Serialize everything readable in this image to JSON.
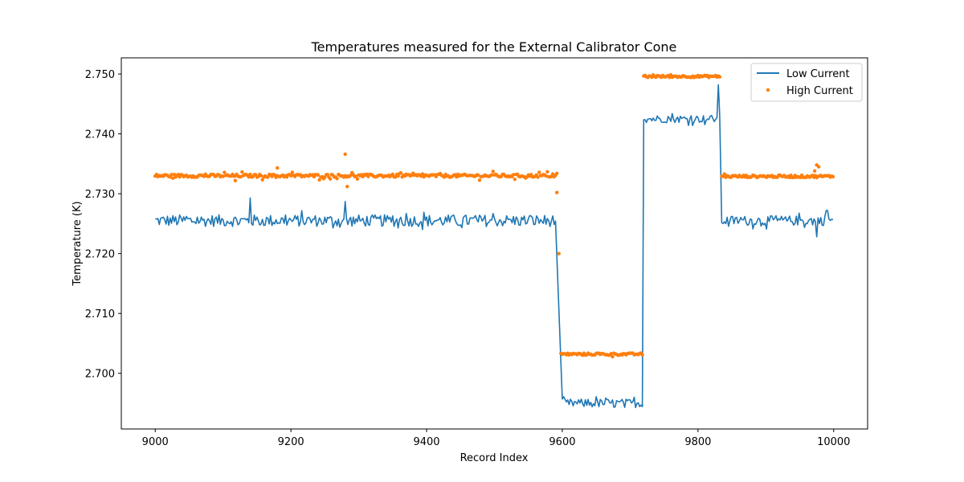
{
  "chart_data": {
    "type": "line",
    "title": "Temperatures measured for the External Calibrator Cone",
    "xlabel": "Record Index",
    "ylabel": "Temperature (K)",
    "xlim": [
      8950,
      10050
    ],
    "ylim": [
      2.6907,
      2.7527
    ],
    "xticks": [
      9000,
      9200,
      9400,
      9600,
      9800,
      10000
    ],
    "yticks": [
      2.7,
      2.71,
      2.72,
      2.73,
      2.74,
      2.75
    ],
    "xtick_labels": [
      "9000",
      "9200",
      "9400",
      "9600",
      "9800",
      "10000"
    ],
    "ytick_labels": [
      "2.700",
      "2.710",
      "2.720",
      "2.730",
      "2.740",
      "2.750"
    ],
    "legend_position": "top-right",
    "series": [
      {
        "name": "Low Current",
        "kind": "line",
        "color": "#1f77b4",
        "segments": [
          {
            "x_start": 9000,
            "x_end": 9590,
            "level": 2.7255,
            "noise": 0.0011
          },
          {
            "x_start": 9600,
            "x_end": 9718,
            "level": 2.695,
            "noise": 0.0008
          },
          {
            "x_start": 9720,
            "x_end": 9832,
            "level": 2.7425,
            "noise": 0.0007
          },
          {
            "x_start": 9835,
            "x_end": 10000,
            "level": 2.7255,
            "noise": 0.0009
          }
        ],
        "spikes": [
          {
            "x": 9140,
            "y": 2.7293
          },
          {
            "x": 9280,
            "y": 2.7287
          },
          {
            "x": 9830,
            "y": 2.7482
          },
          {
            "x": 9975,
            "y": 2.7228
          },
          {
            "x": 9990,
            "y": 2.7272
          }
        ]
      },
      {
        "name": "High Current",
        "kind": "scatter",
        "color": "#ff7f0e",
        "segments": [
          {
            "x_start": 9000,
            "x_end": 9592,
            "level": 2.733,
            "noise": 0.00025
          },
          {
            "x_start": 9598,
            "x_end": 9718,
            "level": 2.7032,
            "noise": 0.00018
          },
          {
            "x_start": 9720,
            "x_end": 9832,
            "level": 2.7496,
            "noise": 0.00018
          },
          {
            "x_start": 9835,
            "x_end": 10000,
            "level": 2.7329,
            "noise": 0.0002
          }
        ],
        "outliers": [
          {
            "x": 9280,
            "y": 2.7366
          },
          {
            "x": 9283,
            "y": 2.7312
          },
          {
            "x": 9180,
            "y": 2.7343
          },
          {
            "x": 9118,
            "y": 2.7322
          },
          {
            "x": 9592,
            "y": 2.7302
          },
          {
            "x": 9595,
            "y": 2.72
          },
          {
            "x": 9975,
            "y": 2.7348
          },
          {
            "x": 9978,
            "y": 2.7345
          },
          {
            "x": 9972,
            "y": 2.7338
          }
        ]
      }
    ]
  }
}
